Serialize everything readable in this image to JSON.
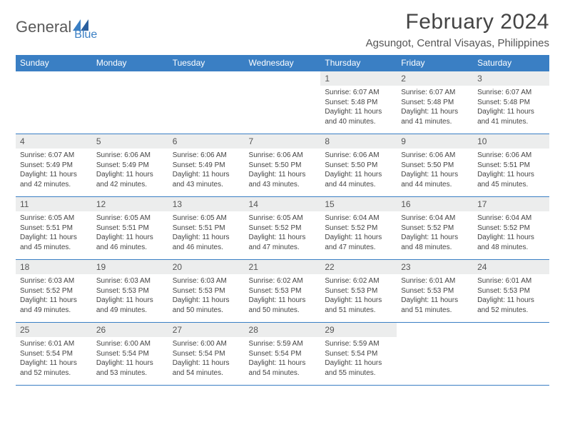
{
  "logo": {
    "text1": "General",
    "text2": "Blue"
  },
  "title": "February 2024",
  "location": "Agsungot, Central Visayas, Philippines",
  "colors": {
    "header_bg": "#3a7fc4",
    "header_text": "#ffffff",
    "daynum_bg": "#eceded",
    "border": "#3a7fc4",
    "page_bg": "#ffffff",
    "body_text": "#444444",
    "logo_gray": "#5a5a5a",
    "logo_blue": "#3a7fc4"
  },
  "typography": {
    "title_fontsize": 30,
    "location_fontsize": 15,
    "dayheader_fontsize": 12,
    "daynum_fontsize": 12,
    "body_fontsize": 10
  },
  "day_headers": [
    "Sunday",
    "Monday",
    "Tuesday",
    "Wednesday",
    "Thursday",
    "Friday",
    "Saturday"
  ],
  "weeks": [
    [
      {
        "n": "",
        "sr": "",
        "ss": "",
        "dl": ""
      },
      {
        "n": "",
        "sr": "",
        "ss": "",
        "dl": ""
      },
      {
        "n": "",
        "sr": "",
        "ss": "",
        "dl": ""
      },
      {
        "n": "",
        "sr": "",
        "ss": "",
        "dl": ""
      },
      {
        "n": "1",
        "sr": "Sunrise: 6:07 AM",
        "ss": "Sunset: 5:48 PM",
        "dl": "Daylight: 11 hours and 40 minutes."
      },
      {
        "n": "2",
        "sr": "Sunrise: 6:07 AM",
        "ss": "Sunset: 5:48 PM",
        "dl": "Daylight: 11 hours and 41 minutes."
      },
      {
        "n": "3",
        "sr": "Sunrise: 6:07 AM",
        "ss": "Sunset: 5:48 PM",
        "dl": "Daylight: 11 hours and 41 minutes."
      }
    ],
    [
      {
        "n": "4",
        "sr": "Sunrise: 6:07 AM",
        "ss": "Sunset: 5:49 PM",
        "dl": "Daylight: 11 hours and 42 minutes."
      },
      {
        "n": "5",
        "sr": "Sunrise: 6:06 AM",
        "ss": "Sunset: 5:49 PM",
        "dl": "Daylight: 11 hours and 42 minutes."
      },
      {
        "n": "6",
        "sr": "Sunrise: 6:06 AM",
        "ss": "Sunset: 5:49 PM",
        "dl": "Daylight: 11 hours and 43 minutes."
      },
      {
        "n": "7",
        "sr": "Sunrise: 6:06 AM",
        "ss": "Sunset: 5:50 PM",
        "dl": "Daylight: 11 hours and 43 minutes."
      },
      {
        "n": "8",
        "sr": "Sunrise: 6:06 AM",
        "ss": "Sunset: 5:50 PM",
        "dl": "Daylight: 11 hours and 44 minutes."
      },
      {
        "n": "9",
        "sr": "Sunrise: 6:06 AM",
        "ss": "Sunset: 5:50 PM",
        "dl": "Daylight: 11 hours and 44 minutes."
      },
      {
        "n": "10",
        "sr": "Sunrise: 6:06 AM",
        "ss": "Sunset: 5:51 PM",
        "dl": "Daylight: 11 hours and 45 minutes."
      }
    ],
    [
      {
        "n": "11",
        "sr": "Sunrise: 6:05 AM",
        "ss": "Sunset: 5:51 PM",
        "dl": "Daylight: 11 hours and 45 minutes."
      },
      {
        "n": "12",
        "sr": "Sunrise: 6:05 AM",
        "ss": "Sunset: 5:51 PM",
        "dl": "Daylight: 11 hours and 46 minutes."
      },
      {
        "n": "13",
        "sr": "Sunrise: 6:05 AM",
        "ss": "Sunset: 5:51 PM",
        "dl": "Daylight: 11 hours and 46 minutes."
      },
      {
        "n": "14",
        "sr": "Sunrise: 6:05 AM",
        "ss": "Sunset: 5:52 PM",
        "dl": "Daylight: 11 hours and 47 minutes."
      },
      {
        "n": "15",
        "sr": "Sunrise: 6:04 AM",
        "ss": "Sunset: 5:52 PM",
        "dl": "Daylight: 11 hours and 47 minutes."
      },
      {
        "n": "16",
        "sr": "Sunrise: 6:04 AM",
        "ss": "Sunset: 5:52 PM",
        "dl": "Daylight: 11 hours and 48 minutes."
      },
      {
        "n": "17",
        "sr": "Sunrise: 6:04 AM",
        "ss": "Sunset: 5:52 PM",
        "dl": "Daylight: 11 hours and 48 minutes."
      }
    ],
    [
      {
        "n": "18",
        "sr": "Sunrise: 6:03 AM",
        "ss": "Sunset: 5:52 PM",
        "dl": "Daylight: 11 hours and 49 minutes."
      },
      {
        "n": "19",
        "sr": "Sunrise: 6:03 AM",
        "ss": "Sunset: 5:53 PM",
        "dl": "Daylight: 11 hours and 49 minutes."
      },
      {
        "n": "20",
        "sr": "Sunrise: 6:03 AM",
        "ss": "Sunset: 5:53 PM",
        "dl": "Daylight: 11 hours and 50 minutes."
      },
      {
        "n": "21",
        "sr": "Sunrise: 6:02 AM",
        "ss": "Sunset: 5:53 PM",
        "dl": "Daylight: 11 hours and 50 minutes."
      },
      {
        "n": "22",
        "sr": "Sunrise: 6:02 AM",
        "ss": "Sunset: 5:53 PM",
        "dl": "Daylight: 11 hours and 51 minutes."
      },
      {
        "n": "23",
        "sr": "Sunrise: 6:01 AM",
        "ss": "Sunset: 5:53 PM",
        "dl": "Daylight: 11 hours and 51 minutes."
      },
      {
        "n": "24",
        "sr": "Sunrise: 6:01 AM",
        "ss": "Sunset: 5:53 PM",
        "dl": "Daylight: 11 hours and 52 minutes."
      }
    ],
    [
      {
        "n": "25",
        "sr": "Sunrise: 6:01 AM",
        "ss": "Sunset: 5:54 PM",
        "dl": "Daylight: 11 hours and 52 minutes."
      },
      {
        "n": "26",
        "sr": "Sunrise: 6:00 AM",
        "ss": "Sunset: 5:54 PM",
        "dl": "Daylight: 11 hours and 53 minutes."
      },
      {
        "n": "27",
        "sr": "Sunrise: 6:00 AM",
        "ss": "Sunset: 5:54 PM",
        "dl": "Daylight: 11 hours and 54 minutes."
      },
      {
        "n": "28",
        "sr": "Sunrise: 5:59 AM",
        "ss": "Sunset: 5:54 PM",
        "dl": "Daylight: 11 hours and 54 minutes."
      },
      {
        "n": "29",
        "sr": "Sunrise: 5:59 AM",
        "ss": "Sunset: 5:54 PM",
        "dl": "Daylight: 11 hours and 55 minutes."
      },
      {
        "n": "",
        "sr": "",
        "ss": "",
        "dl": ""
      },
      {
        "n": "",
        "sr": "",
        "ss": "",
        "dl": ""
      }
    ]
  ]
}
